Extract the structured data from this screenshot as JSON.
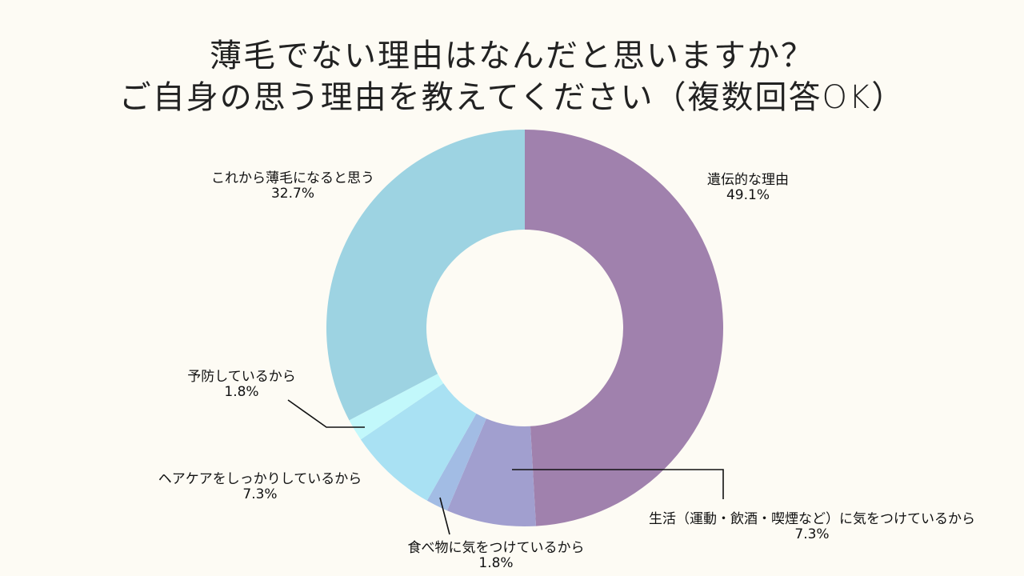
{
  "title": {
    "line1": "薄毛でない理由はなんだと思いますか？",
    "line2": "ご自身の思う理由を教えてください（複数回答OK）"
  },
  "chart_data": {
    "type": "pie",
    "variant": "donut",
    "slices": [
      {
        "label": "遺伝的な理由",
        "value": 49.1,
        "value_label": "49.1%",
        "color": "#a081ad"
      },
      {
        "label": "生活（運動・飲酒・喫煙など）に気をつけているから",
        "value": 7.3,
        "value_label": "7.3%",
        "color": "#a19fcf"
      },
      {
        "label": "食べ物に気をつけているから",
        "value": 1.8,
        "value_label": "1.8%",
        "color": "#a2bce4"
      },
      {
        "label": "ヘアケアをしっかりしているから",
        "value": 7.3,
        "value_label": "7.3%",
        "color": "#a9e1f3"
      },
      {
        "label": "予防しているから",
        "value": 1.8,
        "value_label": "1.8%",
        "color": "#c2f8fb"
      },
      {
        "label": "これから薄毛になると思う",
        "value": 32.7,
        "value_label": "32.7%",
        "color": "#9dd3e2"
      }
    ]
  }
}
